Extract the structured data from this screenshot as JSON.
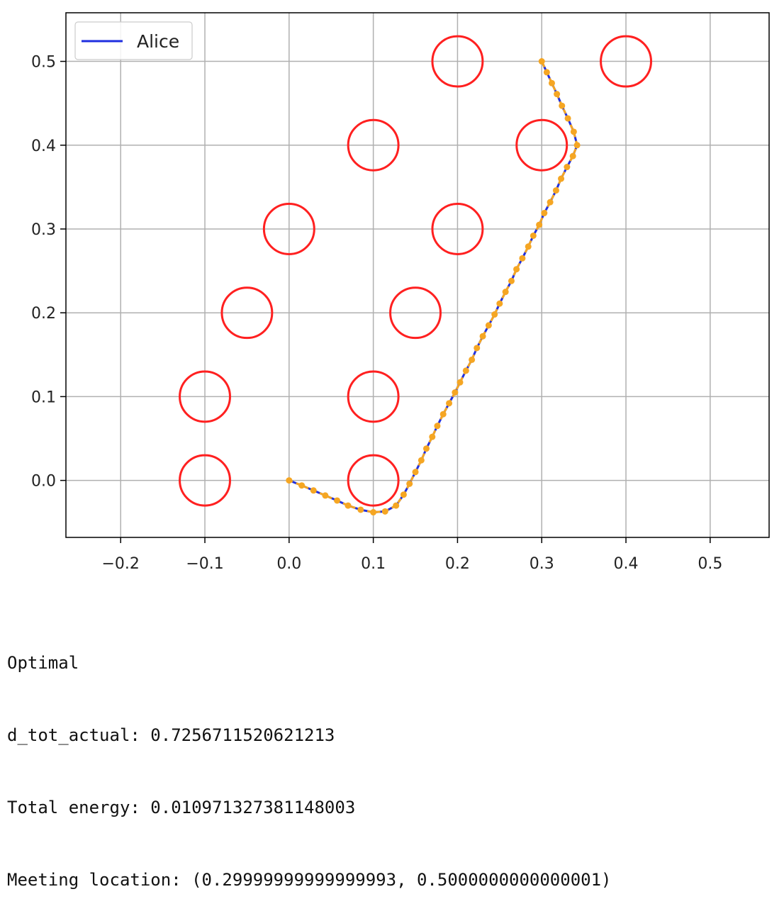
{
  "chart_data": {
    "type": "line",
    "title": "",
    "xlabel": "",
    "ylabel": "",
    "xlim": [
      -0.265,
      0.57
    ],
    "ylim": [
      -0.068,
      0.558
    ],
    "grid": true,
    "legend_position": "top-left",
    "x_ticks": [
      "−0.2",
      "−0.1",
      "0.0",
      "0.1",
      "0.2",
      "0.3",
      "0.4",
      "0.5"
    ],
    "x_tick_values": [
      -0.2,
      -0.1,
      0.0,
      0.1,
      0.2,
      0.3,
      0.4,
      0.5
    ],
    "y_ticks": [
      "0.0",
      "0.1",
      "0.2",
      "0.3",
      "0.4",
      "0.5"
    ],
    "y_tick_values": [
      0.0,
      0.1,
      0.2,
      0.3,
      0.4,
      0.5
    ],
    "obstacles": {
      "radius": 0.03,
      "color": "#ff2020",
      "centers": [
        [
          -0.1,
          0.0
        ],
        [
          0.1,
          0.0
        ],
        [
          -0.1,
          0.1
        ],
        [
          0.1,
          0.1
        ],
        [
          -0.05,
          0.2
        ],
        [
          0.15,
          0.2
        ],
        [
          0.0,
          0.3
        ],
        [
          0.2,
          0.3
        ],
        [
          0.1,
          0.4
        ],
        [
          0.3,
          0.4
        ],
        [
          0.2,
          0.5
        ],
        [
          0.4,
          0.5
        ]
      ]
    },
    "series": [
      {
        "name": "Alice",
        "color": "#1f2fe0",
        "marker_color": "#f5a623",
        "points": [
          [
            0.0,
            0.0
          ],
          [
            0.015,
            -0.006
          ],
          [
            0.029,
            -0.012
          ],
          [
            0.043,
            -0.018
          ],
          [
            0.057,
            -0.024
          ],
          [
            0.07,
            -0.03
          ],
          [
            0.085,
            -0.035
          ],
          [
            0.1,
            -0.038
          ],
          [
            0.114,
            -0.037
          ],
          [
            0.127,
            -0.03
          ],
          [
            0.136,
            -0.017
          ],
          [
            0.143,
            -0.004
          ],
          [
            0.15,
            0.01
          ],
          [
            0.157,
            0.024
          ],
          [
            0.163,
            0.038
          ],
          [
            0.17,
            0.052
          ],
          [
            0.176,
            0.065
          ],
          [
            0.183,
            0.079
          ],
          [
            0.19,
            0.092
          ],
          [
            0.197,
            0.105
          ],
          [
            0.203,
            0.117
          ],
          [
            0.21,
            0.131
          ],
          [
            0.217,
            0.144
          ],
          [
            0.223,
            0.158
          ],
          [
            0.23,
            0.172
          ],
          [
            0.237,
            0.185
          ],
          [
            0.244,
            0.198
          ],
          [
            0.25,
            0.211
          ],
          [
            0.257,
            0.225
          ],
          [
            0.264,
            0.238
          ],
          [
            0.27,
            0.252
          ],
          [
            0.277,
            0.265
          ],
          [
            0.284,
            0.279
          ],
          [
            0.29,
            0.292
          ],
          [
            0.297,
            0.305
          ],
          [
            0.303,
            0.319
          ],
          [
            0.31,
            0.332
          ],
          [
            0.317,
            0.346
          ],
          [
            0.323,
            0.36
          ],
          [
            0.33,
            0.374
          ],
          [
            0.337,
            0.387
          ],
          [
            0.342,
            0.4
          ],
          [
            0.338,
            0.416
          ],
          [
            0.331,
            0.432
          ],
          [
            0.324,
            0.447
          ],
          [
            0.318,
            0.461
          ],
          [
            0.312,
            0.474
          ],
          [
            0.306,
            0.487
          ],
          [
            0.3,
            0.5
          ]
        ]
      }
    ]
  },
  "output": {
    "line1": "Optimal",
    "line2": "d_tot_actual: 0.7256711520621213",
    "line3": "Total energy: 0.010971327381148003",
    "line4": "Meeting location: (0.29999999999999993, 0.5000000000000001)"
  }
}
